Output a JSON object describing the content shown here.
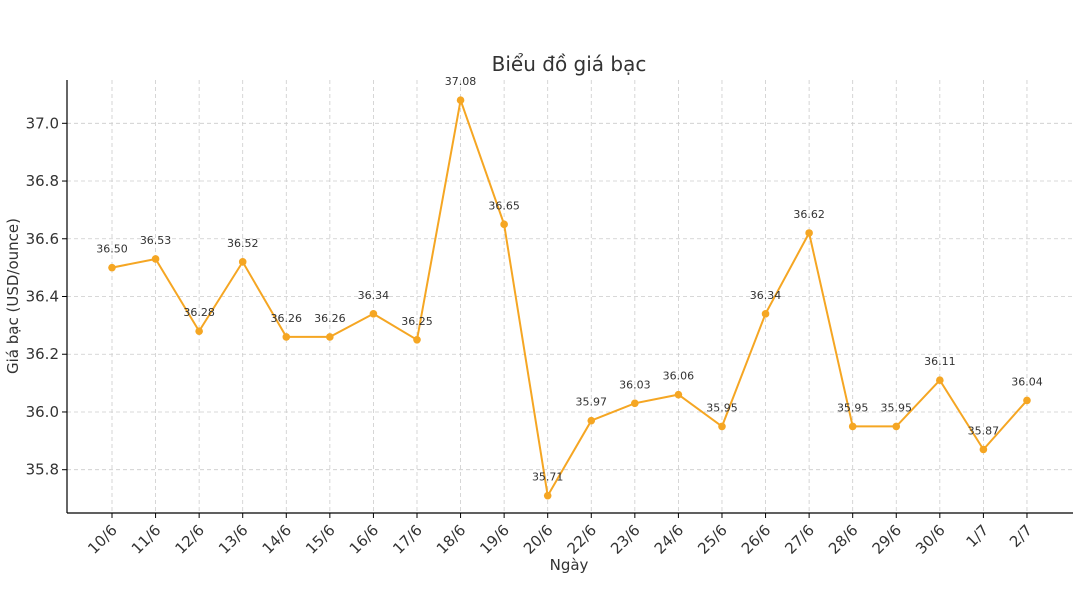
{
  "chart_data": {
    "type": "line",
    "title": "Biểu đồ giá bạc",
    "xlabel": "Ngày",
    "ylabel": "Giá bạc (USD/ounce)",
    "categories": [
      "10/6",
      "11/6",
      "12/6",
      "13/6",
      "14/6",
      "15/6",
      "16/6",
      "17/6",
      "18/6",
      "19/6",
      "20/6",
      "22/6",
      "23/6",
      "24/6",
      "25/6",
      "26/6",
      "27/6",
      "28/6",
      "29/6",
      "30/6",
      "1/7",
      "2/7"
    ],
    "values": [
      36.5,
      36.53,
      36.28,
      36.52,
      36.26,
      36.26,
      36.34,
      36.25,
      37.08,
      36.65,
      35.71,
      35.97,
      36.03,
      36.06,
      35.95,
      36.34,
      36.62,
      35.95,
      35.95,
      36.11,
      35.87,
      36.04
    ],
    "data_labels": [
      "36.50",
      "36.53",
      "36.28",
      "36.52",
      "36.26",
      "36.26",
      "36.34",
      "36.25",
      "37.08",
      "36.65",
      "35.71",
      "35.97",
      "36.03",
      "36.06",
      "35.95",
      "36.34",
      "36.62",
      "35.95",
      "35.95",
      "36.11",
      "35.87",
      "36.04"
    ],
    "yticks": [
      "35.8",
      "36.0",
      "36.2",
      "36.4",
      "36.6",
      "36.8",
      "37.0"
    ],
    "ylim": [
      35.65,
      37.15
    ],
    "grid": true,
    "line_color": "#F5A623"
  }
}
